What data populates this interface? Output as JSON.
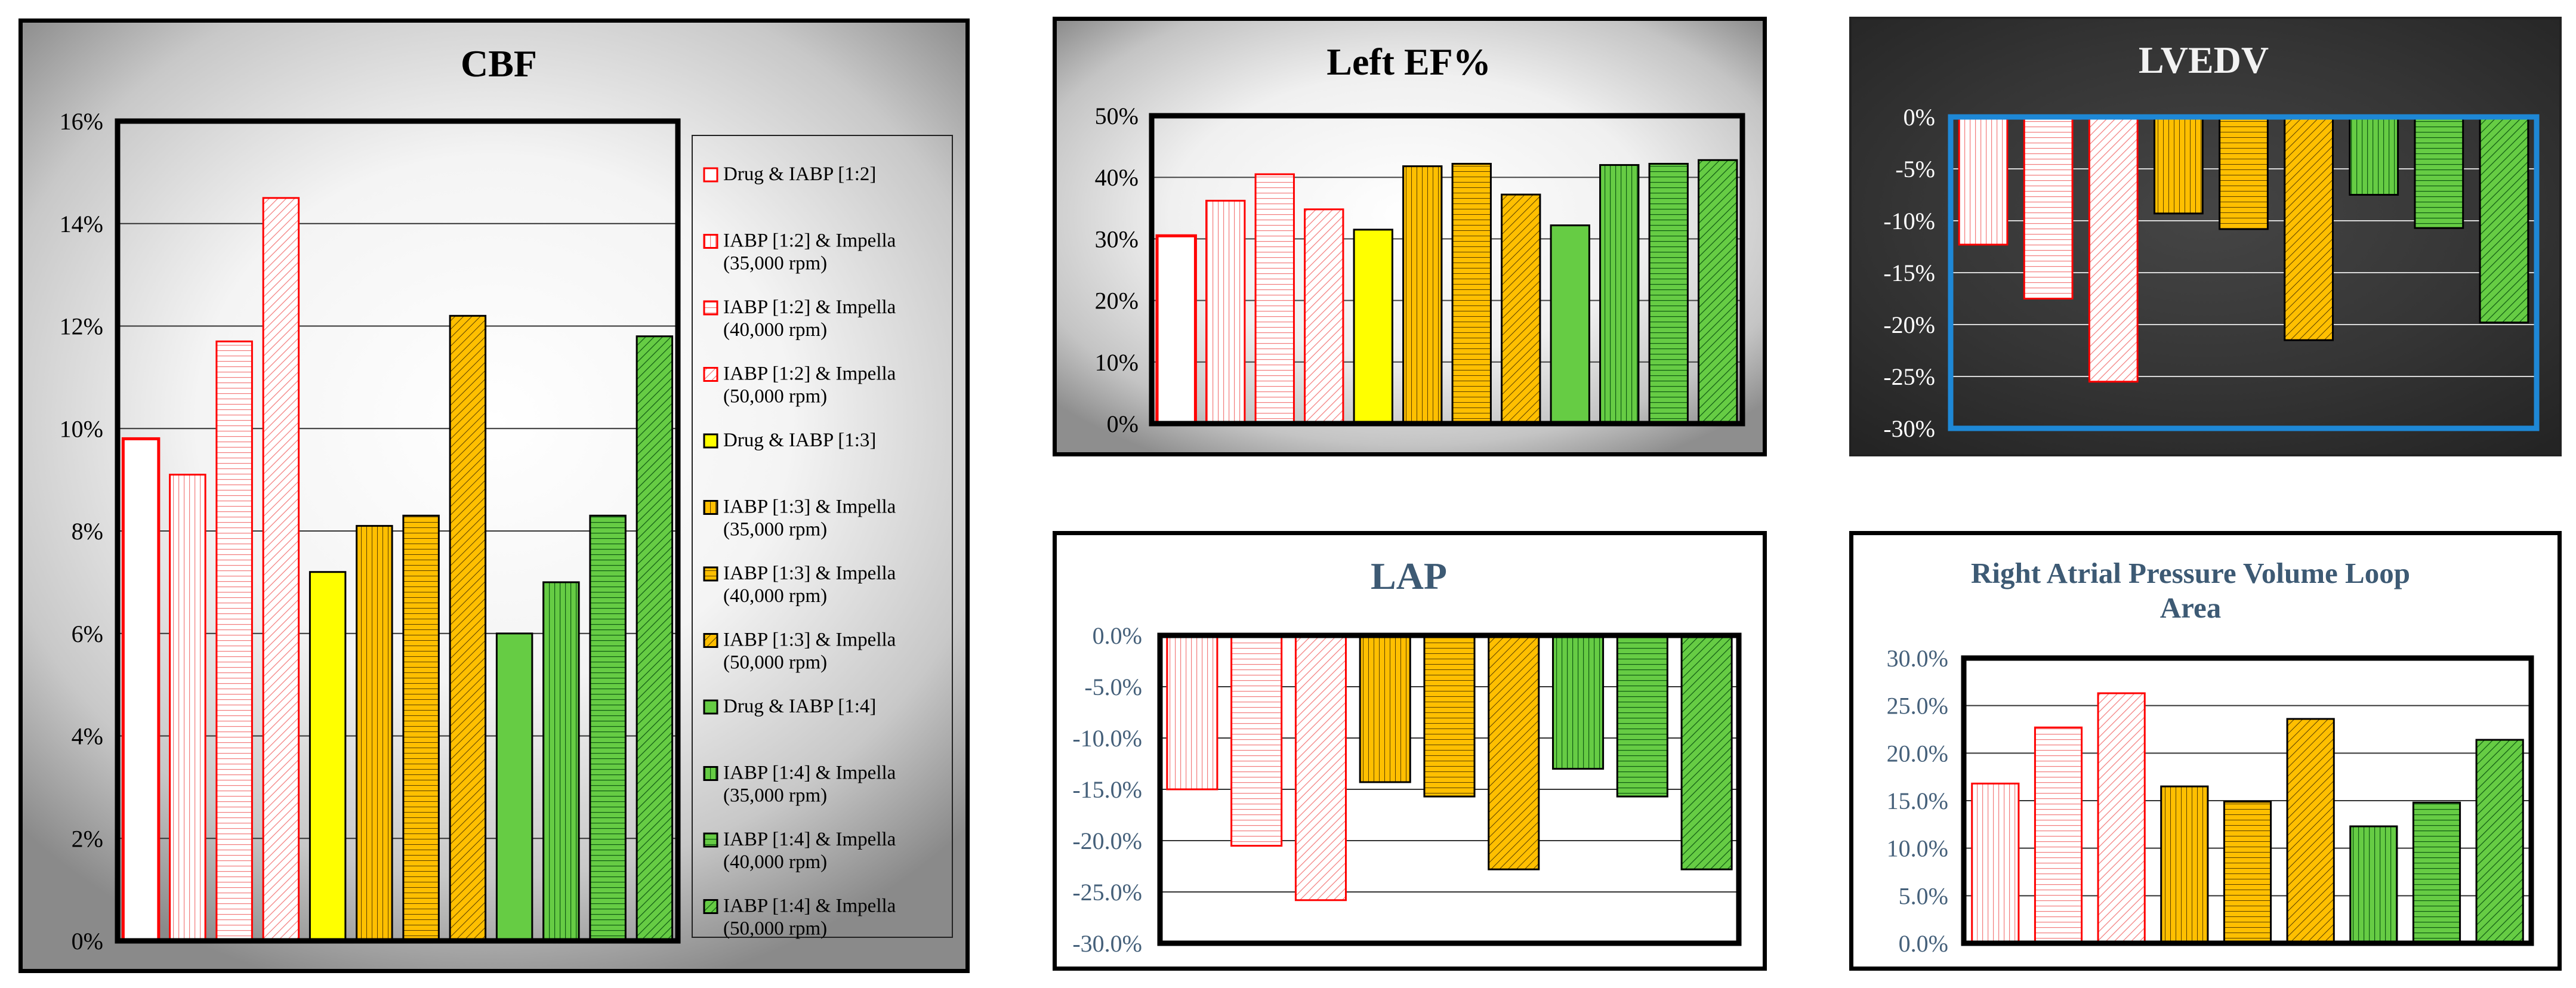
{
  "chart_data": [
    {
      "id": "cbf",
      "type": "bar",
      "title": "CBF",
      "ylim": [
        0,
        0.16
      ],
      "yticks": [
        "0%",
        "2%",
        "4%",
        "6%",
        "8%",
        "10%",
        "12%",
        "14%",
        "16%"
      ],
      "values": [
        0.098,
        0.091,
        0.117,
        0.145,
        0.072,
        0.081,
        0.083,
        0.122,
        0.06,
        0.07,
        0.083,
        0.118
      ],
      "legend": [
        [
          "Drug & IABP [1:2]"
        ],
        [
          "IABP [1:2] & Impella",
          "(35,000 rpm)"
        ],
        [
          "IABP [1:2] & Impella",
          "(40,000 rpm)"
        ],
        [
          "IABP [1:2] & Impella",
          "(50,000 rpm)"
        ],
        [
          "Drug & IABP [1:3]"
        ],
        [
          "IABP [1:3] & Impella",
          "(35,000 rpm)"
        ],
        [
          "IABP [1:3] & Impella",
          "(40,000 rpm)"
        ],
        [
          "IABP [1:3] & Impella",
          "(50,000 rpm)"
        ],
        [
          "Drug & IABP [1:4]"
        ],
        [
          "IABP [1:4] & Impella",
          "(35,000 rpm)"
        ],
        [
          "IABP [1:4] & Impella",
          "(40,000 rpm)"
        ],
        [
          "IABP [1:4] & Impella",
          "(50,000 rpm)"
        ]
      ]
    },
    {
      "id": "ef",
      "type": "bar",
      "title": "Left EF%",
      "ylim": [
        0,
        0.5
      ],
      "yticks": [
        "0%",
        "10%",
        "20%",
        "30%",
        "40%",
        "50%"
      ],
      "values": [
        0.305,
        0.362,
        0.405,
        0.348,
        0.315,
        0.418,
        0.422,
        0.372,
        0.322,
        0.42,
        0.422,
        0.428
      ]
    },
    {
      "id": "lvedv",
      "type": "bar",
      "title": "LVEDV",
      "ylim": [
        -0.3,
        0
      ],
      "yticks": [
        "0%",
        "-5%",
        "-10%",
        "-15%",
        "-20%",
        "-25%",
        "-30%"
      ],
      "values": [
        -0.123,
        -0.175,
        -0.255,
        -0.093,
        -0.108,
        -0.215,
        -0.075,
        -0.107,
        -0.198
      ]
    },
    {
      "id": "lap",
      "type": "bar",
      "title": "LAP",
      "ylim": [
        -0.3,
        0
      ],
      "yticks": [
        "0.0%",
        "-5.0%",
        "-10.0%",
        "-15.0%",
        "-20.0%",
        "-25.0%",
        "-30.0%"
      ],
      "values": [
        -0.15,
        -0.205,
        -0.258,
        -0.143,
        -0.157,
        -0.228,
        -0.13,
        -0.157,
        -0.228
      ]
    },
    {
      "id": "ra",
      "type": "bar",
      "title_lines": [
        "Right Atrial Pressure Volume Loop",
        "Area"
      ],
      "ylim": [
        0,
        0.3
      ],
      "yticks": [
        "0.0%",
        "5.0%",
        "10.0%",
        "15.0%",
        "20.0%",
        "25.0%",
        "30.0%"
      ],
      "values": [
        0.168,
        0.227,
        0.263,
        0.165,
        0.149,
        0.236,
        0.123,
        0.148,
        0.214
      ]
    }
  ],
  "colors": {
    "red": "#ff0000",
    "pink_fill": "#ffffff",
    "pink_stroke": "#f37b7b",
    "yellow": "#ffff00",
    "orange": "#ffbf00",
    "green": "#66cc44",
    "dark_green_lines": "#0f5a12",
    "lvedv_frame": "#1e88d6",
    "lap_tick_text": "#45607a"
  }
}
